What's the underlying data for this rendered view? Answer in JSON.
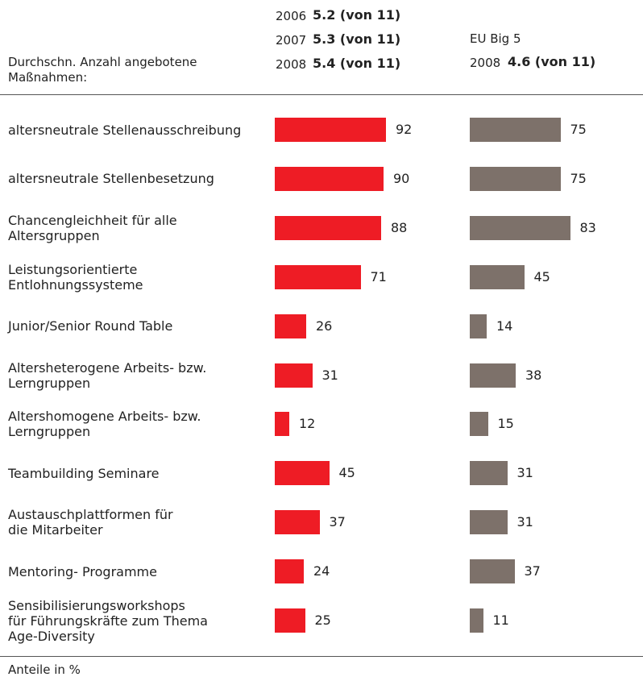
{
  "chart_data": {
    "type": "bar",
    "summary_label": "Durchschn. Anzahl angebotene\nMaßnahmen:",
    "summary": [
      {
        "year": "2006",
        "value": "5.2 (von 11)"
      },
      {
        "year": "2007",
        "value": "5.3 (von 11)"
      },
      {
        "year": "2008",
        "value": "5.4 (von 11)"
      }
    ],
    "eu_label": "EU Big 5",
    "eu_summary": {
      "year": "2008",
      "value": "4.6 (von 11)"
    },
    "categories": [
      "altersneutrale Stellenausschreibung",
      "altersneutrale Stellenbesetzung",
      "Chancengleichheit für alle\nAltersgruppen",
      "Leistungsorientierte\nEntlohnungssysteme",
      "Junior/Senior Round Table",
      "Altersheterogene Arbeits- bzw.\nLerngruppen",
      "Altershomogene Arbeits- bzw.\nLerngruppen",
      "Teambuilding Seminare",
      "Austauschplattformen für\ndie Mitarbeiter",
      "Mentoring- Programme",
      "Sensibilisierungsworkshops\nfür Führungskräfte zum Thema\nAge-Diversity"
    ],
    "series": [
      {
        "color": "#ee1c25",
        "values": [
          92,
          90,
          88,
          71,
          26,
          31,
          12,
          45,
          37,
          24,
          25
        ]
      },
      {
        "color": "#7d716a",
        "values": [
          75,
          75,
          83,
          45,
          14,
          38,
          15,
          31,
          31,
          37,
          11
        ]
      }
    ],
    "footnote": "Anteile in %"
  }
}
